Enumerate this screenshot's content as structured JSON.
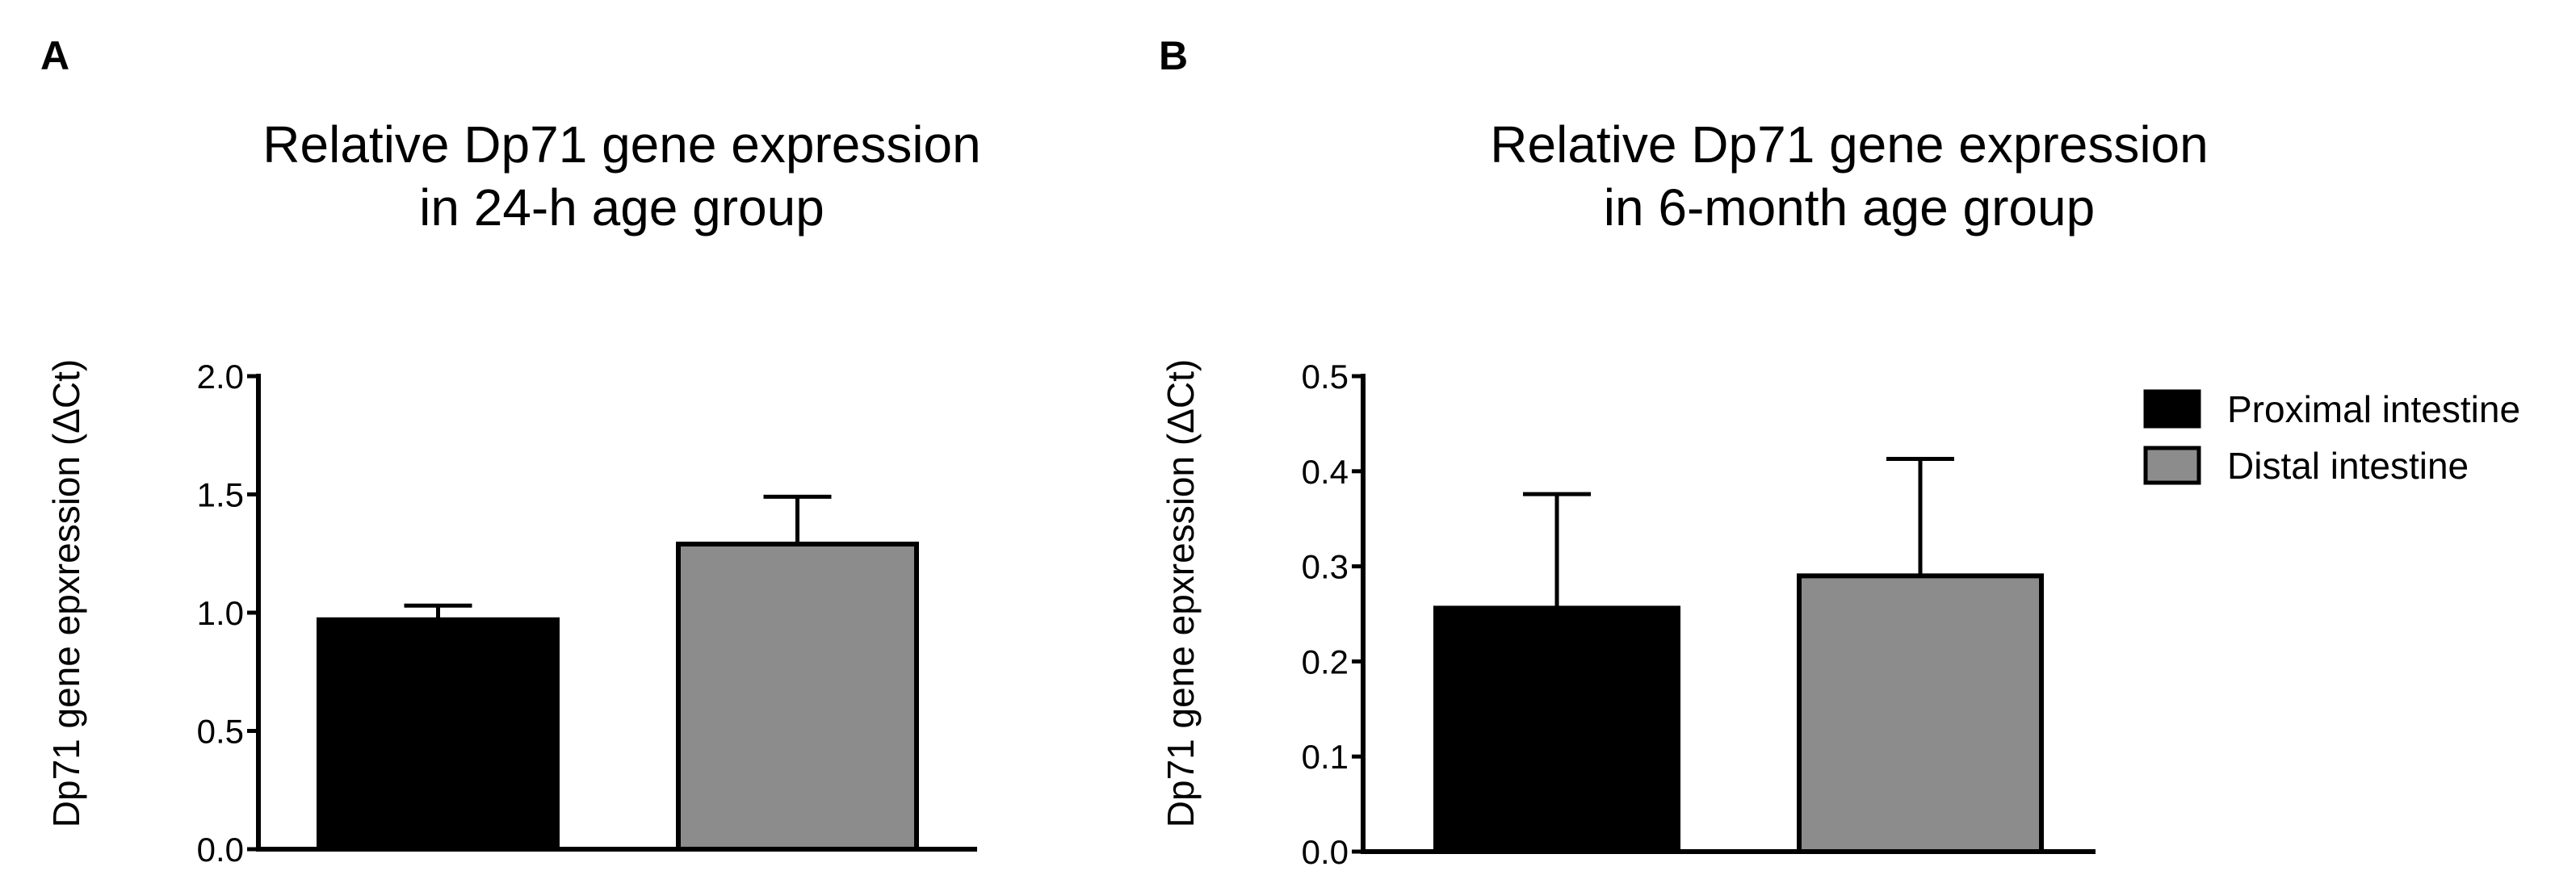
{
  "panels": [
    {
      "letter": "A",
      "title_line1": "Relative Dp71 gene expression",
      "title_line2": "in 24-h age group"
    },
    {
      "letter": "B",
      "title_line1": "Relative Dp71 gene expression",
      "title_line2": "in 6-month age group"
    }
  ],
  "legend": [
    {
      "label": "Proximal intestine",
      "color": "#000000"
    },
    {
      "label": "Distal intestine",
      "color": "#8c8c8c"
    }
  ],
  "chart_data": [
    {
      "type": "bar",
      "title": "Relative Dp71 gene expression in 24-h age group",
      "xlabel": "",
      "ylabel": "Dp71 gene epxression (ΔCt)",
      "ylim": [
        0,
        2.0
      ],
      "yticks": [
        0,
        0.5,
        1.0,
        1.5,
        2.0
      ],
      "yticklabels": [
        "0.0",
        "0.5",
        "1.0",
        "1.5",
        "2.0"
      ],
      "categories": [
        "Proximal intestine",
        "Distal intestine"
      ],
      "values": [
        0.97,
        1.29
      ],
      "errors": [
        0.06,
        0.2
      ],
      "colors": [
        "#000000",
        "#8c8c8c"
      ]
    },
    {
      "type": "bar",
      "title": "Relative Dp71 gene expression in 6-month age group",
      "xlabel": "",
      "ylabel": "Dp71 gene epxression (ΔCt)",
      "ylim": [
        0,
        0.5
      ],
      "yticks": [
        0,
        0.1,
        0.2,
        0.3,
        0.4,
        0.5
      ],
      "yticklabels": [
        "0.0",
        "0.1",
        "0.2",
        "0.3",
        "0.4",
        "0.5"
      ],
      "categories": [
        "Proximal intestine",
        "Distal intestine"
      ],
      "values": [
        0.256,
        0.29
      ],
      "errors": [
        0.12,
        0.123
      ],
      "colors": [
        "#000000",
        "#8c8c8c"
      ]
    }
  ]
}
